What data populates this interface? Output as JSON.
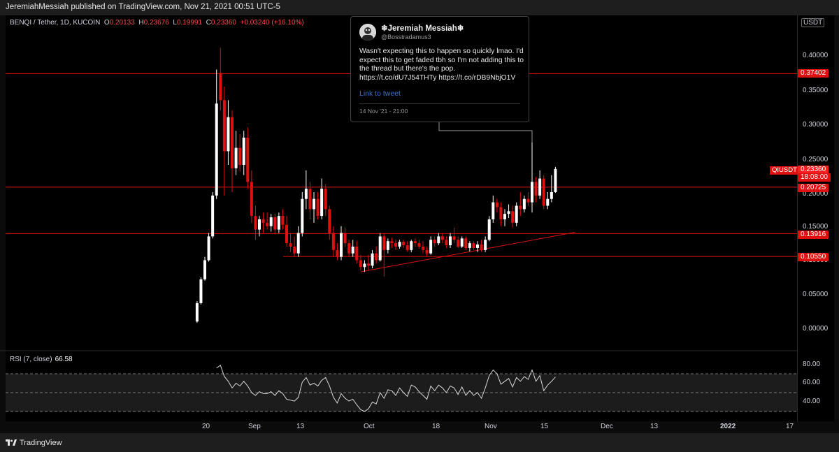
{
  "header": {
    "published": "JeremiahMessiah published on TradingView.com, Nov 21, 2021 00:51 UTC-5"
  },
  "legend": {
    "symbol": "BENQI / Tether, 1D, KUCOIN",
    "open_label": "O",
    "open": "0.20133",
    "high_label": "H",
    "high": "0.23676",
    "low_label": "L",
    "low": "0.19991",
    "close_label": "C",
    "close": "0.23360",
    "change": "+0.03240 (+16.10%)"
  },
  "axis": {
    "currency": "USDT",
    "price_ticks": [
      "0.40000",
      "0.35000",
      "0.30000",
      "0.25000",
      "0.20000",
      "0.15000",
      "0.10000",
      "0.05000",
      "0.00000"
    ],
    "rsi_ticks": [
      "80.00",
      "60.00",
      "40.00"
    ],
    "time_ticks": [
      "20",
      "Sep",
      "13",
      "Oct",
      "18",
      "Nov",
      "15",
      "Dec",
      "13",
      "2022",
      "17"
    ]
  },
  "price_labels": {
    "line1": "0.37402",
    "line2": "0.20725",
    "line3": "0.13916",
    "line4": "0.10550",
    "live_symbol": "QIUSDT",
    "live_price": "0.23360",
    "countdown": "18:08:00"
  },
  "rsi": {
    "label": "RSI (7, close)",
    "value": "66.58"
  },
  "tweet": {
    "name": "Jeremiah Messiah",
    "name_icon_left": "❄",
    "name_icon_right": "❄",
    "handle": "@Bosstradamus3",
    "text": "Wasn't expecting this to happen so quickly lmao. I'd expect this to get faded tbh so I'm not adding this to the thread but there's the pop. https://t.co/dU7J54THTy https://t.co/rDB9NbjO1V",
    "link": "Link to tweet",
    "date": "14 Nov '21 - 21:00"
  },
  "footer": {
    "brand": "TradingView"
  },
  "colors": {
    "up": "#ffffff",
    "down": "#e01010",
    "line": "#e01010",
    "rsi": "#d8d8d8",
    "background": "#000000"
  },
  "chart_data": {
    "type": "candlestick",
    "symbol": "BENQI / Tether",
    "interval": "1D",
    "exchange": "KUCOIN",
    "ylim": [
      -0.015,
      0.43
    ],
    "horizontal_lines": [
      0.37402,
      0.20725,
      0.13916,
      0.1055
    ],
    "trendline": {
      "from": [
        "2021-09-29",
        0.083
      ],
      "to": [
        "2021-11-23",
        0.141
      ]
    },
    "candles": [
      [
        "2021-08-18",
        0.01,
        0.04,
        0.008,
        0.037
      ],
      [
        "2021-08-19",
        0.037,
        0.075,
        0.035,
        0.072
      ],
      [
        "2021-08-20",
        0.072,
        0.105,
        0.07,
        0.1
      ],
      [
        "2021-08-21",
        0.1,
        0.14,
        0.098,
        0.135
      ],
      [
        "2021-08-22",
        0.135,
        0.2,
        0.132,
        0.195
      ],
      [
        "2021-08-23",
        0.195,
        0.38,
        0.19,
        0.33
      ],
      [
        "2021-08-24",
        0.375,
        0.412,
        0.32,
        0.335
      ],
      [
        "2021-08-25",
        0.335,
        0.355,
        0.195,
        0.26
      ],
      [
        "2021-08-26",
        0.26,
        0.335,
        0.24,
        0.31
      ],
      [
        "2021-08-27",
        0.31,
        0.32,
        0.2,
        0.235
      ],
      [
        "2021-08-28",
        0.235,
        0.29,
        0.225,
        0.265
      ],
      [
        "2021-08-29",
        0.265,
        0.285,
        0.23,
        0.24
      ],
      [
        "2021-08-30",
        0.24,
        0.29,
        0.225,
        0.28
      ],
      [
        "2021-08-31",
        0.28,
        0.295,
        0.205,
        0.215
      ],
      [
        "2021-09-01",
        0.215,
        0.232,
        0.155,
        0.165
      ],
      [
        "2021-09-02",
        0.165,
        0.18,
        0.13,
        0.145
      ],
      [
        "2021-09-03",
        0.145,
        0.165,
        0.135,
        0.16
      ],
      [
        "2021-09-04",
        0.16,
        0.17,
        0.14,
        0.155
      ],
      [
        "2021-09-05",
        0.155,
        0.17,
        0.145,
        0.15
      ],
      [
        "2021-09-06",
        0.15,
        0.168,
        0.142,
        0.163
      ],
      [
        "2021-09-07",
        0.163,
        0.168,
        0.138,
        0.145
      ],
      [
        "2021-09-08",
        0.145,
        0.17,
        0.14,
        0.165
      ],
      [
        "2021-09-09",
        0.165,
        0.175,
        0.145,
        0.152
      ],
      [
        "2021-09-10",
        0.152,
        0.165,
        0.12,
        0.125
      ],
      [
        "2021-09-11",
        0.125,
        0.14,
        0.112,
        0.12
      ],
      [
        "2021-09-12",
        0.12,
        0.135,
        0.105,
        0.11
      ],
      [
        "2021-09-13",
        0.11,
        0.15,
        0.105,
        0.14
      ],
      [
        "2021-09-14",
        0.14,
        0.2,
        0.135,
        0.19
      ],
      [
        "2021-09-15",
        0.19,
        0.232,
        0.175,
        0.205
      ],
      [
        "2021-09-16",
        0.205,
        0.215,
        0.16,
        0.175
      ],
      [
        "2021-09-17",
        0.175,
        0.2,
        0.155,
        0.19
      ],
      [
        "2021-09-18",
        0.19,
        0.2,
        0.16,
        0.165
      ],
      [
        "2021-09-19",
        0.165,
        0.22,
        0.16,
        0.205
      ],
      [
        "2021-09-20",
        0.205,
        0.212,
        0.165,
        0.175
      ],
      [
        "2021-09-21",
        0.175,
        0.18,
        0.13,
        0.14
      ],
      [
        "2021-09-22",
        0.14,
        0.15,
        0.105,
        0.115
      ],
      [
        "2021-09-23",
        0.115,
        0.125,
        0.1,
        0.105
      ],
      [
        "2021-09-24",
        0.105,
        0.15,
        0.1,
        0.14
      ],
      [
        "2021-09-25",
        0.14,
        0.148,
        0.12,
        0.125
      ],
      [
        "2021-09-26",
        0.125,
        0.13,
        0.105,
        0.11
      ],
      [
        "2021-09-27",
        0.11,
        0.13,
        0.105,
        0.12
      ],
      [
        "2021-09-28",
        0.12,
        0.128,
        0.095,
        0.1
      ],
      [
        "2021-09-29",
        0.1,
        0.108,
        0.085,
        0.09
      ],
      [
        "2021-09-30",
        0.09,
        0.1,
        0.083,
        0.095
      ],
      [
        "2021-10-01",
        0.095,
        0.108,
        0.085,
        0.092
      ],
      [
        "2021-10-02",
        0.092,
        0.115,
        0.088,
        0.11
      ],
      [
        "2021-10-03",
        0.11,
        0.12,
        0.095,
        0.1
      ],
      [
        "2021-10-04",
        0.1,
        0.14,
        0.098,
        0.135
      ],
      [
        "2021-10-05",
        0.135,
        0.14,
        0.076,
        0.115
      ],
      [
        "2021-10-06",
        0.115,
        0.132,
        0.11,
        0.128
      ],
      [
        "2021-10-07",
        0.128,
        0.133,
        0.118,
        0.125
      ],
      [
        "2021-10-08",
        0.125,
        0.13,
        0.115,
        0.12
      ],
      [
        "2021-10-09",
        0.12,
        0.13,
        0.117,
        0.127
      ],
      [
        "2021-10-10",
        0.127,
        0.13,
        0.118,
        0.122
      ],
      [
        "2021-10-11",
        0.122,
        0.128,
        0.112,
        0.115
      ],
      [
        "2021-10-12",
        0.115,
        0.13,
        0.112,
        0.128
      ],
      [
        "2021-10-13",
        0.128,
        0.132,
        0.12,
        0.125
      ],
      [
        "2021-10-14",
        0.125,
        0.13,
        0.117,
        0.12
      ],
      [
        "2021-10-15",
        0.12,
        0.128,
        0.11,
        0.115
      ],
      [
        "2021-10-16",
        0.115,
        0.12,
        0.105,
        0.11
      ],
      [
        "2021-10-17",
        0.11,
        0.135,
        0.108,
        0.13
      ],
      [
        "2021-10-18",
        0.13,
        0.135,
        0.12,
        0.125
      ],
      [
        "2021-10-19",
        0.125,
        0.14,
        0.122,
        0.135
      ],
      [
        "2021-10-20",
        0.135,
        0.14,
        0.125,
        0.13
      ],
      [
        "2021-10-21",
        0.13,
        0.135,
        0.118,
        0.122
      ],
      [
        "2021-10-22",
        0.122,
        0.14,
        0.118,
        0.135
      ],
      [
        "2021-10-23",
        0.135,
        0.148,
        0.125,
        0.13
      ],
      [
        "2021-10-24",
        0.13,
        0.135,
        0.118,
        0.12
      ],
      [
        "2021-10-25",
        0.12,
        0.135,
        0.118,
        0.132
      ],
      [
        "2021-10-26",
        0.132,
        0.135,
        0.115,
        0.118
      ],
      [
        "2021-10-27",
        0.118,
        0.128,
        0.113,
        0.125
      ],
      [
        "2021-10-28",
        0.125,
        0.128,
        0.115,
        0.118
      ],
      [
        "2021-10-29",
        0.118,
        0.128,
        0.112,
        0.123
      ],
      [
        "2021-10-30",
        0.123,
        0.13,
        0.112,
        0.115
      ],
      [
        "2021-10-31",
        0.115,
        0.135,
        0.112,
        0.13
      ],
      [
        "2021-11-01",
        0.13,
        0.165,
        0.128,
        0.16
      ],
      [
        "2021-11-02",
        0.16,
        0.195,
        0.155,
        0.185
      ],
      [
        "2021-11-03",
        0.185,
        0.19,
        0.17,
        0.178
      ],
      [
        "2021-11-04",
        0.178,
        0.185,
        0.15,
        0.16
      ],
      [
        "2021-11-05",
        0.16,
        0.175,
        0.15,
        0.168
      ],
      [
        "2021-11-06",
        0.168,
        0.182,
        0.162,
        0.172
      ],
      [
        "2021-11-07",
        0.172,
        0.18,
        0.148,
        0.155
      ],
      [
        "2021-11-08",
        0.155,
        0.185,
        0.15,
        0.18
      ],
      [
        "2021-11-09",
        0.18,
        0.2,
        0.165,
        0.175
      ],
      [
        "2021-11-10",
        0.175,
        0.195,
        0.17,
        0.19
      ],
      [
        "2021-11-11",
        0.19,
        0.2,
        0.18,
        0.185
      ],
      [
        "2021-11-12",
        0.185,
        0.275,
        0.17,
        0.215
      ],
      [
        "2021-11-13",
        0.215,
        0.222,
        0.185,
        0.195
      ],
      [
        "2021-11-14",
        0.195,
        0.232,
        0.19,
        0.22
      ],
      [
        "2021-11-15",
        0.22,
        0.225,
        0.175,
        0.18
      ],
      [
        "2021-11-16",
        0.18,
        0.2,
        0.175,
        0.19
      ],
      [
        "2021-11-17",
        0.19,
        0.225,
        0.185,
        0.2
      ],
      [
        "2021-11-18",
        0.2,
        0.237,
        0.199,
        0.234
      ]
    ],
    "rsi": [
      [
        "2021-08-23",
        76
      ],
      [
        "2021-08-24",
        79
      ],
      [
        "2021-08-25",
        67
      ],
      [
        "2021-08-26",
        62
      ],
      [
        "2021-08-27",
        55
      ],
      [
        "2021-08-28",
        60
      ],
      [
        "2021-08-29",
        57
      ],
      [
        "2021-08-30",
        62
      ],
      [
        "2021-08-31",
        57
      ],
      [
        "2021-09-01",
        50
      ],
      [
        "2021-09-02",
        47
      ],
      [
        "2021-09-03",
        51
      ],
      [
        "2021-09-04",
        49
      ],
      [
        "2021-09-05",
        49
      ],
      [
        "2021-09-06",
        51
      ],
      [
        "2021-09-07",
        47
      ],
      [
        "2021-09-08",
        52
      ],
      [
        "2021-09-09",
        49
      ],
      [
        "2021-09-10",
        43
      ],
      [
        "2021-09-11",
        42
      ],
      [
        "2021-09-12",
        41
      ],
      [
        "2021-09-13",
        45
      ],
      [
        "2021-09-14",
        61
      ],
      [
        "2021-09-15",
        66
      ],
      [
        "2021-09-16",
        58
      ],
      [
        "2021-09-17",
        60
      ],
      [
        "2021-09-18",
        57
      ],
      [
        "2021-09-19",
        63
      ],
      [
        "2021-09-20",
        66
      ],
      [
        "2021-09-21",
        57
      ],
      [
        "2021-09-22",
        45
      ],
      [
        "2021-09-23",
        39
      ],
      [
        "2021-09-24",
        49
      ],
      [
        "2021-09-25",
        44
      ],
      [
        "2021-09-26",
        41
      ],
      [
        "2021-09-27",
        43
      ],
      [
        "2021-09-28",
        37
      ],
      [
        "2021-09-29",
        32
      ],
      [
        "2021-09-30",
        30
      ],
      [
        "2021-10-01",
        33
      ],
      [
        "2021-10-02",
        40
      ],
      [
        "2021-10-03",
        38
      ],
      [
        "2021-10-04",
        50
      ],
      [
        "2021-10-05",
        44
      ],
      [
        "2021-10-06",
        53
      ],
      [
        "2021-10-07",
        52
      ],
      [
        "2021-10-08",
        47
      ],
      [
        "2021-10-09",
        55
      ],
      [
        "2021-10-10",
        50
      ],
      [
        "2021-10-11",
        46
      ],
      [
        "2021-10-12",
        58
      ],
      [
        "2021-10-13",
        56
      ],
      [
        "2021-10-14",
        51
      ],
      [
        "2021-10-15",
        47
      ],
      [
        "2021-10-16",
        43
      ],
      [
        "2021-10-17",
        57
      ],
      [
        "2021-10-18",
        52
      ],
      [
        "2021-10-19",
        58
      ],
      [
        "2021-10-20",
        55
      ],
      [
        "2021-10-21",
        50
      ],
      [
        "2021-10-22",
        57
      ],
      [
        "2021-10-23",
        55
      ],
      [
        "2021-10-24",
        48
      ],
      [
        "2021-10-25",
        56
      ],
      [
        "2021-10-26",
        47
      ],
      [
        "2021-10-27",
        52
      ],
      [
        "2021-10-28",
        47
      ],
      [
        "2021-10-29",
        50
      ],
      [
        "2021-10-30",
        44
      ],
      [
        "2021-10-31",
        55
      ],
      [
        "2021-11-01",
        68
      ],
      [
        "2021-11-02",
        74
      ],
      [
        "2021-11-03",
        70
      ],
      [
        "2021-11-04",
        59
      ],
      [
        "2021-11-05",
        62
      ],
      [
        "2021-11-06",
        65
      ],
      [
        "2021-11-07",
        56
      ],
      [
        "2021-11-08",
        66
      ],
      [
        "2021-11-09",
        62
      ],
      [
        "2021-11-10",
        67
      ],
      [
        "2021-11-11",
        64
      ],
      [
        "2021-11-12",
        74
      ],
      [
        "2021-11-13",
        62
      ],
      [
        "2021-11-14",
        68
      ],
      [
        "2021-11-15",
        52
      ],
      [
        "2021-11-16",
        58
      ],
      [
        "2021-11-17",
        62
      ],
      [
        "2021-11-18",
        66.58
      ]
    ],
    "rsi_ylim": [
      25,
      92
    ],
    "rsi_bands": [
      70,
      50,
      30
    ]
  }
}
